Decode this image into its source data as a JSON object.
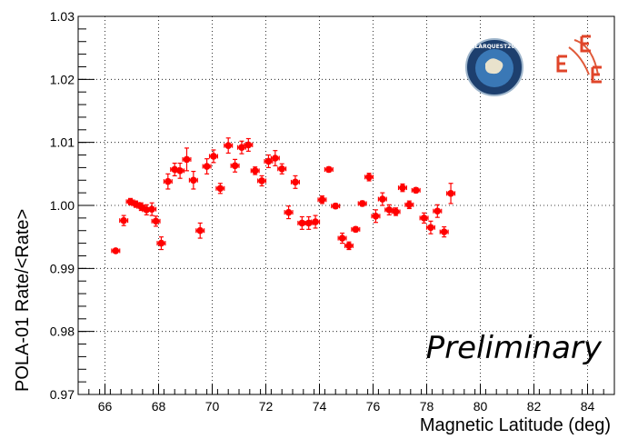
{
  "chart_data": {
    "type": "scatter",
    "title": "",
    "xlabel": "Magnetic Latitude (deg)",
    "ylabel": "POLA-01 Rate/<Rate>",
    "xlim": [
      65,
      85
    ],
    "ylim": [
      0.97,
      1.03
    ],
    "x_ticks": [
      "66",
      "68",
      "70",
      "72",
      "74",
      "76",
      "78",
      "80",
      "82",
      "84"
    ],
    "y_ticks": [
      "0.97",
      "0.98",
      "0.99",
      "1.00",
      "1.01",
      "1.02",
      "1.03"
    ],
    "grid": true,
    "marker_color": "#ff0000",
    "annotation": "Preliminary",
    "logos": [
      "polarquest2018-logo",
      "eee-logo"
    ],
    "logo_text": "POLARQUEST2018",
    "series": [
      {
        "x": [
          66.4,
          66.7,
          66.95,
          67.15,
          67.35,
          67.55,
          67.75,
          67.9,
          68.1,
          68.35,
          68.6,
          68.8,
          69.05,
          69.3,
          69.55,
          69.8,
          70.05,
          70.3,
          70.6,
          70.85,
          71.1,
          71.35,
          71.6,
          71.85,
          72.1,
          72.35,
          72.6,
          72.85,
          73.1,
          73.35,
          73.6,
          73.85,
          74.1,
          74.35,
          74.6,
          74.85,
          75.1,
          75.35,
          75.6,
          75.85,
          76.1,
          76.35,
          76.6,
          76.85,
          77.1,
          77.35,
          77.6,
          77.9,
          78.15,
          78.4,
          78.65,
          78.9
        ],
        "y": [
          0.9928,
          0.9976,
          1.0006,
          1.0002,
          0.9998,
          0.9993,
          0.9994,
          0.9975,
          0.994,
          1.0038,
          1.0057,
          1.0055,
          1.0073,
          1.004,
          0.996,
          1.0062,
          1.0078,
          1.0027,
          1.0095,
          1.0063,
          1.0092,
          1.0096,
          1.0055,
          1.0039,
          1.007,
          1.0075,
          1.0058,
          0.9989,
          1.0037,
          0.9972,
          0.9972,
          0.9974,
          1.0009,
          1.0057,
          0.9999,
          0.9948,
          0.9936,
          0.9962,
          1.0003,
          1.0045,
          0.9983,
          1.001,
          0.9993,
          0.999,
          1.0028,
          1.0001,
          1.0024,
          0.998,
          0.9965,
          0.9991,
          0.9958,
          1.0019
        ],
        "x_err": [
          0.15,
          0.15,
          0.15,
          0.15,
          0.15,
          0.15,
          0.15,
          0.15,
          0.15,
          0.15,
          0.15,
          0.15,
          0.15,
          0.15,
          0.15,
          0.15,
          0.15,
          0.15,
          0.15,
          0.15,
          0.15,
          0.15,
          0.15,
          0.15,
          0.15,
          0.15,
          0.15,
          0.15,
          0.15,
          0.15,
          0.15,
          0.15,
          0.15,
          0.15,
          0.15,
          0.15,
          0.15,
          0.15,
          0.15,
          0.15,
          0.15,
          0.15,
          0.15,
          0.15,
          0.15,
          0.15,
          0.15,
          0.15,
          0.15,
          0.15,
          0.15,
          0.15
        ],
        "y_err": [
          0.0003,
          0.0008,
          0.0005,
          0.0005,
          0.0006,
          0.0008,
          0.001,
          0.0008,
          0.001,
          0.0012,
          0.001,
          0.0012,
          0.0018,
          0.0014,
          0.0012,
          0.0012,
          0.001,
          0.0008,
          0.0012,
          0.001,
          0.001,
          0.001,
          0.0006,
          0.0008,
          0.001,
          0.0012,
          0.0008,
          0.001,
          0.001,
          0.001,
          0.001,
          0.001,
          0.0006,
          0.0004,
          0.0004,
          0.0008,
          0.0006,
          0.0004,
          0.0004,
          0.0006,
          0.001,
          0.001,
          0.0008,
          0.0006,
          0.0006,
          0.0006,
          0.0004,
          0.0008,
          0.001,
          0.001,
          0.0008,
          0.0016
        ]
      }
    ]
  }
}
